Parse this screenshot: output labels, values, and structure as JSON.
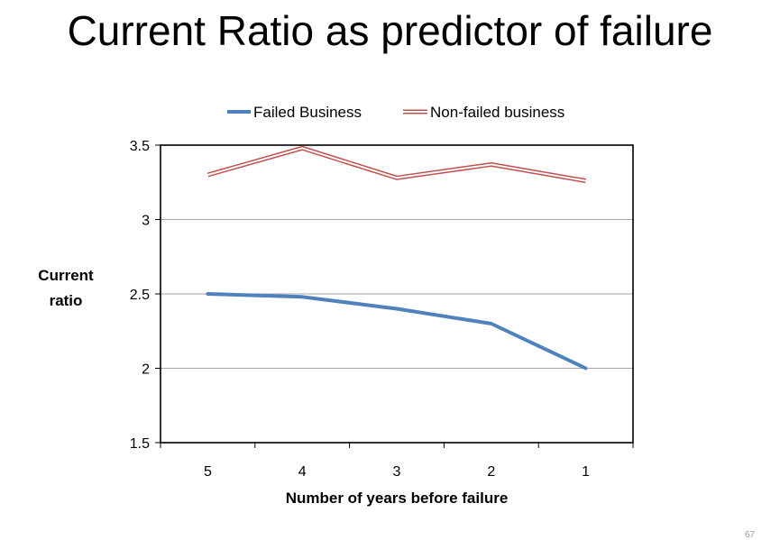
{
  "slide": {
    "title": "Current Ratio as predictor of failure",
    "page_number": "67"
  },
  "chart_data": {
    "type": "line",
    "title": "",
    "xlabel": "Number of years before failure",
    "ylabel_lines": [
      "Current",
      "ratio"
    ],
    "categories": [
      "5",
      "4",
      "3",
      "2",
      "1"
    ],
    "ylim": [
      1.5,
      3.5
    ],
    "yticks": [
      1.5,
      2,
      2.5,
      3,
      3.5
    ],
    "ytick_labels": [
      "1.5",
      "2",
      "2.5",
      "3",
      "3.5"
    ],
    "grid": true,
    "legend_position": "top",
    "series": [
      {
        "name": "Failed Business",
        "values": [
          2.5,
          2.48,
          2.4,
          2.3,
          2.0
        ],
        "color": "#4f81bd",
        "style": "solid"
      },
      {
        "name": "Non-failed business",
        "values": [
          3.3,
          3.48,
          3.28,
          3.37,
          3.26
        ],
        "color": "#c0504d",
        "style": "double"
      }
    ]
  }
}
